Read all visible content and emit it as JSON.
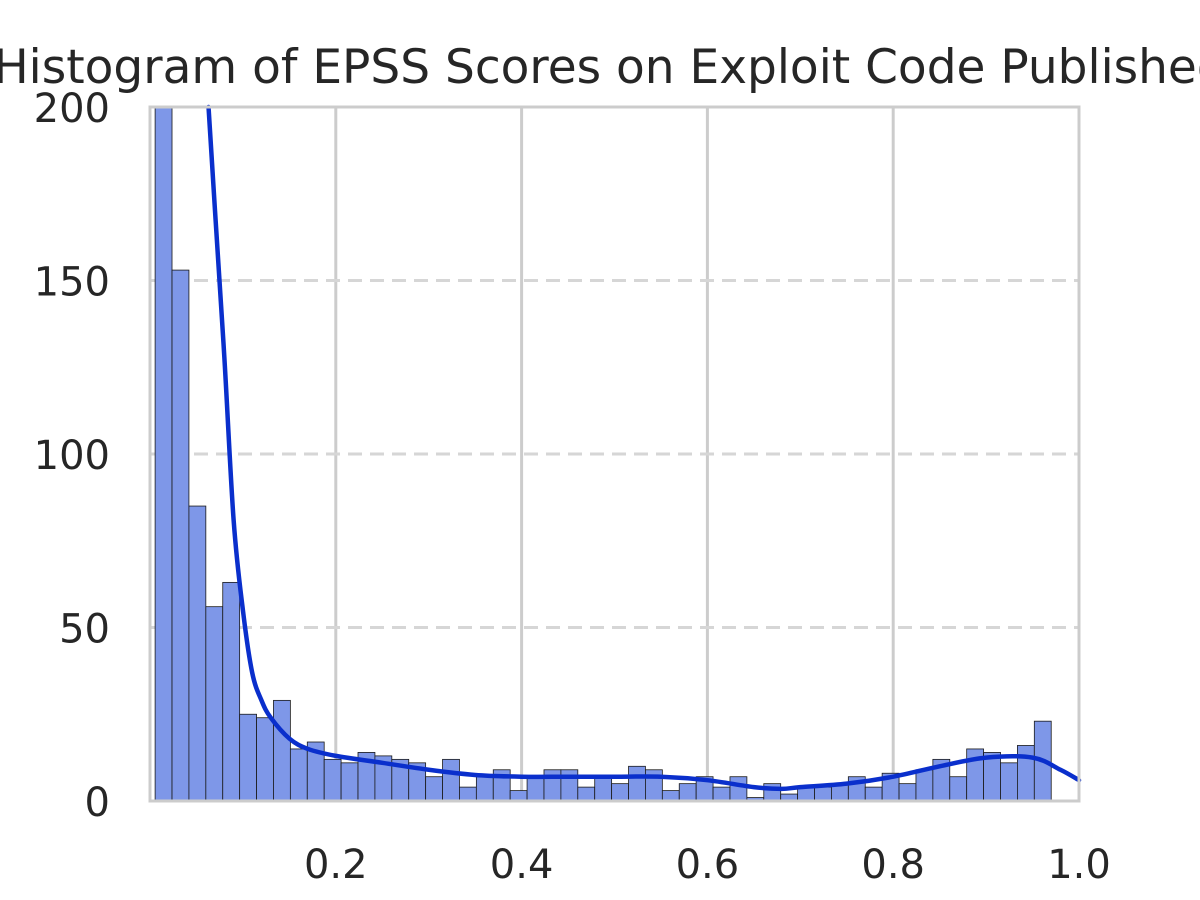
{
  "chart_data": {
    "type": "bar",
    "title": "Histogram of EPSS Scores on Exploit Code Published",
    "xlabel": "",
    "ylabel": "",
    "xlim": [
      0.0,
      1.0
    ],
    "ylim": [
      0,
      200
    ],
    "bin_width": 0.0182,
    "bins_start": 0.0055,
    "values": [
      200,
      153,
      85,
      56,
      63,
      25,
      24,
      29,
      15,
      17,
      12,
      11,
      14,
      13,
      12,
      11,
      7,
      12,
      4,
      7,
      9,
      3,
      7,
      9,
      9,
      4,
      7,
      5,
      10,
      9,
      3,
      5,
      7,
      4,
      7,
      1,
      5,
      2,
      4,
      4,
      5,
      7,
      4,
      8,
      5,
      9,
      12,
      7,
      15,
      14,
      11,
      16,
      23
    ],
    "x_ticks": [
      0.2,
      0.4,
      0.6,
      0.8,
      1.0
    ],
    "x_tick_labels": [
      "0.2",
      "0.4",
      "0.6",
      "0.8",
      "1.0"
    ],
    "y_ticks": [
      0,
      50,
      100,
      150,
      200
    ],
    "y_tick_labels": [
      "0",
      "50",
      "100",
      "150",
      "200"
    ],
    "kde_curve": {
      "x": [
        0.063,
        0.07,
        0.08,
        0.09,
        0.1,
        0.11,
        0.12,
        0.13,
        0.15,
        0.17,
        0.2,
        0.25,
        0.3,
        0.35,
        0.4,
        0.45,
        0.5,
        0.55,
        0.6,
        0.65,
        0.68,
        0.7,
        0.75,
        0.8,
        0.85,
        0.9,
        0.95,
        0.98,
        1.0
      ],
      "y": [
        200,
        170,
        128,
        81,
        55,
        37,
        29,
        24,
        18,
        15,
        13,
        11,
        9,
        7.5,
        7,
        7,
        7,
        7,
        6,
        4,
        3.5,
        4,
        5,
        7,
        10,
        12.5,
        12.5,
        9,
        6
      ]
    },
    "bar_color": "#7e97e8",
    "bar_edge_color": "#1a1a1a",
    "kde_color": "#0a2fcc",
    "grid": true,
    "grid_x": "solid",
    "grid_y": "dashed"
  }
}
